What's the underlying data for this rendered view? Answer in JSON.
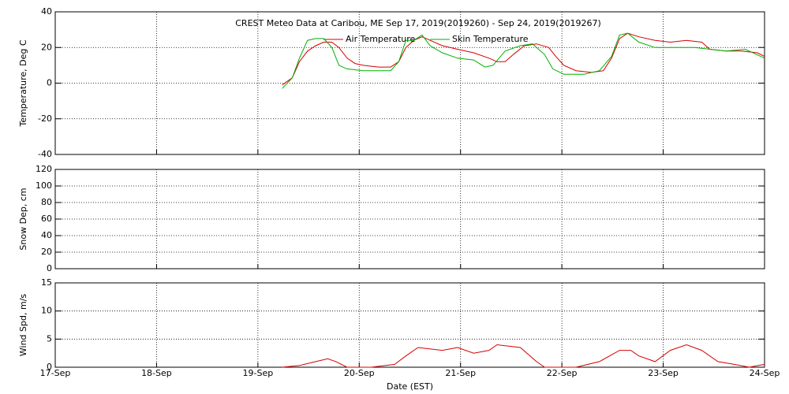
{
  "chart_data": [
    {
      "type": "line",
      "title": "CREST Meteo Data at Caribou, ME   Sep 17, 2019(2019260) - Sep 24, 2019(2019267)",
      "ylabel": "Temperature, Deg C",
      "xlim": [
        17,
        24
      ],
      "xticks": [
        17,
        18,
        19,
        20,
        21,
        22,
        23,
        24
      ],
      "ylim": [
        -40,
        40
      ],
      "yticks": [
        -40,
        -20,
        0,
        20,
        40
      ],
      "grid": true,
      "series": [
        {
          "name": "Air Temperature",
          "color": "#d40000",
          "x": [
            19.24,
            19.34,
            19.41,
            19.49,
            19.57,
            19.65,
            19.73,
            19.8,
            19.88,
            19.96,
            20.04,
            20.19,
            20.31,
            20.39,
            20.46,
            20.54,
            20.62,
            20.7,
            20.82,
            20.97,
            21.13,
            21.28,
            21.36,
            21.44,
            21.52,
            21.63,
            21.75,
            21.87,
            21.94,
            22.02,
            22.14,
            22.29,
            22.41,
            22.49,
            22.57,
            22.65,
            22.76,
            22.92,
            23.07,
            23.23,
            23.38,
            23.46,
            23.62,
            23.77,
            23.93,
            24.0
          ],
          "values": [
            -1,
            3,
            12,
            18,
            21,
            23,
            23,
            20,
            14,
            11,
            10,
            9,
            9,
            12,
            20,
            24,
            26,
            24,
            21,
            19,
            17,
            14,
            12,
            12,
            16,
            21,
            22,
            20,
            15,
            10,
            7,
            6,
            7,
            14,
            25,
            28,
            26,
            24,
            23,
            24,
            23,
            19,
            18,
            18,
            17,
            15
          ]
        },
        {
          "name": "Skin Temperature",
          "color": "#00b000",
          "x": [
            19.24,
            19.34,
            19.41,
            19.49,
            19.57,
            19.65,
            19.73,
            19.8,
            19.88,
            20.04,
            20.19,
            20.31,
            20.39,
            20.46,
            20.54,
            20.62,
            20.7,
            20.82,
            20.97,
            21.13,
            21.24,
            21.32,
            21.44,
            21.59,
            21.71,
            21.83,
            21.91,
            22.02,
            22.22,
            22.37,
            22.49,
            22.57,
            22.65,
            22.76,
            22.92,
            23.07,
            23.31,
            23.46,
            23.62,
            23.81,
            24.0
          ],
          "values": [
            -3,
            3,
            14,
            24,
            25,
            25,
            20,
            10,
            8,
            7,
            7,
            7,
            12,
            24,
            24,
            27,
            21,
            17,
            14,
            13,
            9,
            10,
            18,
            21,
            22,
            16,
            8,
            5,
            5,
            7,
            15,
            27,
            28,
            23,
            20,
            20,
            20,
            19,
            18,
            19,
            14
          ]
        }
      ]
    },
    {
      "type": "line",
      "ylabel": "Snow Dep, cm",
      "xlim": [
        17,
        24
      ],
      "xticks": [
        17,
        18,
        19,
        20,
        21,
        22,
        23,
        24
      ],
      "ylim": [
        0,
        120
      ],
      "yticks": [
        0,
        20,
        40,
        60,
        80,
        100,
        120
      ],
      "grid": true,
      "series": []
    },
    {
      "type": "line",
      "ylabel": "Wind Spd, m/s",
      "xlabel": "Date (EST)",
      "xlim": [
        17,
        24
      ],
      "xticks": [
        {
          "value": 17,
          "label": "17-Sep"
        },
        {
          "value": 18,
          "label": "18-Sep"
        },
        {
          "value": 19,
          "label": "19-Sep"
        },
        {
          "value": 20,
          "label": "20-Sep"
        },
        {
          "value": 21,
          "label": "21-Sep"
        },
        {
          "value": 22,
          "label": "22-Sep"
        },
        {
          "value": 23,
          "label": "23-Sep"
        },
        {
          "value": 24,
          "label": "24-Sep"
        }
      ],
      "ylim": [
        0,
        15
      ],
      "yticks": [
        0,
        5,
        10,
        15
      ],
      "grid": true,
      "series": [
        {
          "color": "#d40000",
          "x": [
            19.24,
            19.41,
            19.57,
            19.69,
            19.77,
            19.88,
            20.12,
            20.35,
            20.46,
            20.58,
            20.82,
            20.97,
            21.13,
            21.28,
            21.36,
            21.59,
            21.75,
            21.83,
            22.14,
            22.37,
            22.57,
            22.68,
            22.76,
            22.92,
            23.07,
            23.23,
            23.38,
            23.54,
            23.7,
            23.85,
            24.0
          ],
          "values": [
            0,
            0.3,
            1,
            1.5,
            1,
            0,
            0,
            0.5,
            2,
            3.5,
            3,
            3.5,
            2.5,
            3,
            4,
            3.5,
            1,
            0,
            0,
            1,
            3,
            3,
            2,
            1,
            3,
            4,
            3,
            1,
            0.5,
            0,
            0.5
          ]
        }
      ]
    }
  ]
}
